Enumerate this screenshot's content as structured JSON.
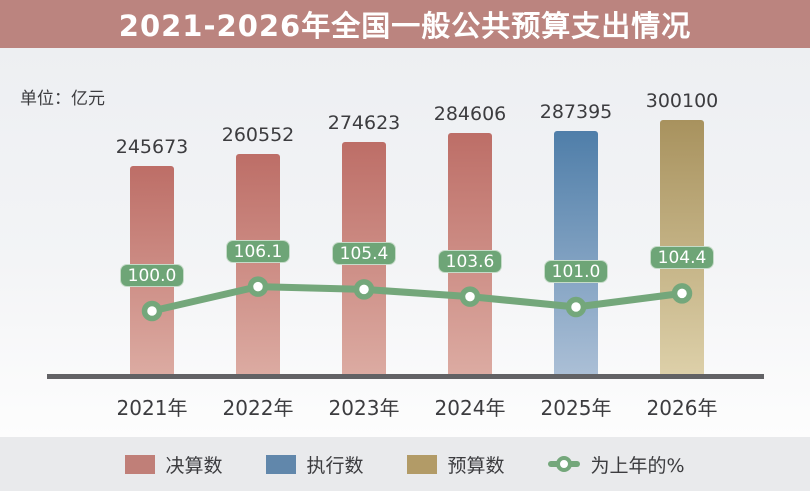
{
  "title": "2021-2026年全国一般公共预算支出情况",
  "unit_label": "单位：亿元",
  "colors": {
    "title_bg": "#bb847f",
    "title_text": "#ffffff",
    "chart_bg_top": "#edeff2",
    "chart_bg_bottom": "#fdfdfd",
    "legend_bg": "#e9eaec",
    "text_dark": "#3c3c3f",
    "axis": "#626265",
    "line_green": "#74a77b",
    "pct_label_bg": "#6ea577",
    "pct_label_text": "#ffffff",
    "bars": {
      "final": {
        "top": "#bd6e67",
        "bottom": "#dcaba2",
        "legend": "#c07f78"
      },
      "exec": {
        "top": "#4f7ea9",
        "bottom": "#abbfd6",
        "legend": "#6187ab"
      },
      "budget": {
        "top": "#a8925e",
        "bottom": "#ddd0a9",
        "legend": "#b29b67"
      }
    }
  },
  "chart_data": {
    "type": "bar",
    "title": "2021-2026年全国一般公共预算支出情况",
    "unit": "亿元",
    "categories": [
      "2021年",
      "2022年",
      "2023年",
      "2024年",
      "2025年",
      "2026年"
    ],
    "series": [
      {
        "name": "决算数",
        "type": "bar",
        "color_key": "final",
        "values": [
          245673,
          260552,
          274623,
          284606,
          null,
          null
        ]
      },
      {
        "name": "执行数",
        "type": "bar",
        "color_key": "exec",
        "values": [
          null,
          null,
          null,
          null,
          287395,
          null
        ]
      },
      {
        "name": "预算数",
        "type": "bar",
        "color_key": "budget",
        "values": [
          null,
          null,
          null,
          null,
          null,
          300100
        ]
      },
      {
        "name": "为上年的%",
        "type": "line",
        "values": [
          100.0,
          106.1,
          105.4,
          103.6,
          101.0,
          104.4
        ]
      }
    ],
    "bar_axis_max": 300100,
    "grid": false,
    "legend_position": "bottom"
  },
  "legend": {
    "items": [
      {
        "label": "决算数",
        "swatch": "final"
      },
      {
        "label": "执行数",
        "swatch": "exec"
      },
      {
        "label": "预算数",
        "swatch": "budget"
      },
      {
        "label": "为上年的%",
        "swatch": "line-marker"
      }
    ]
  }
}
